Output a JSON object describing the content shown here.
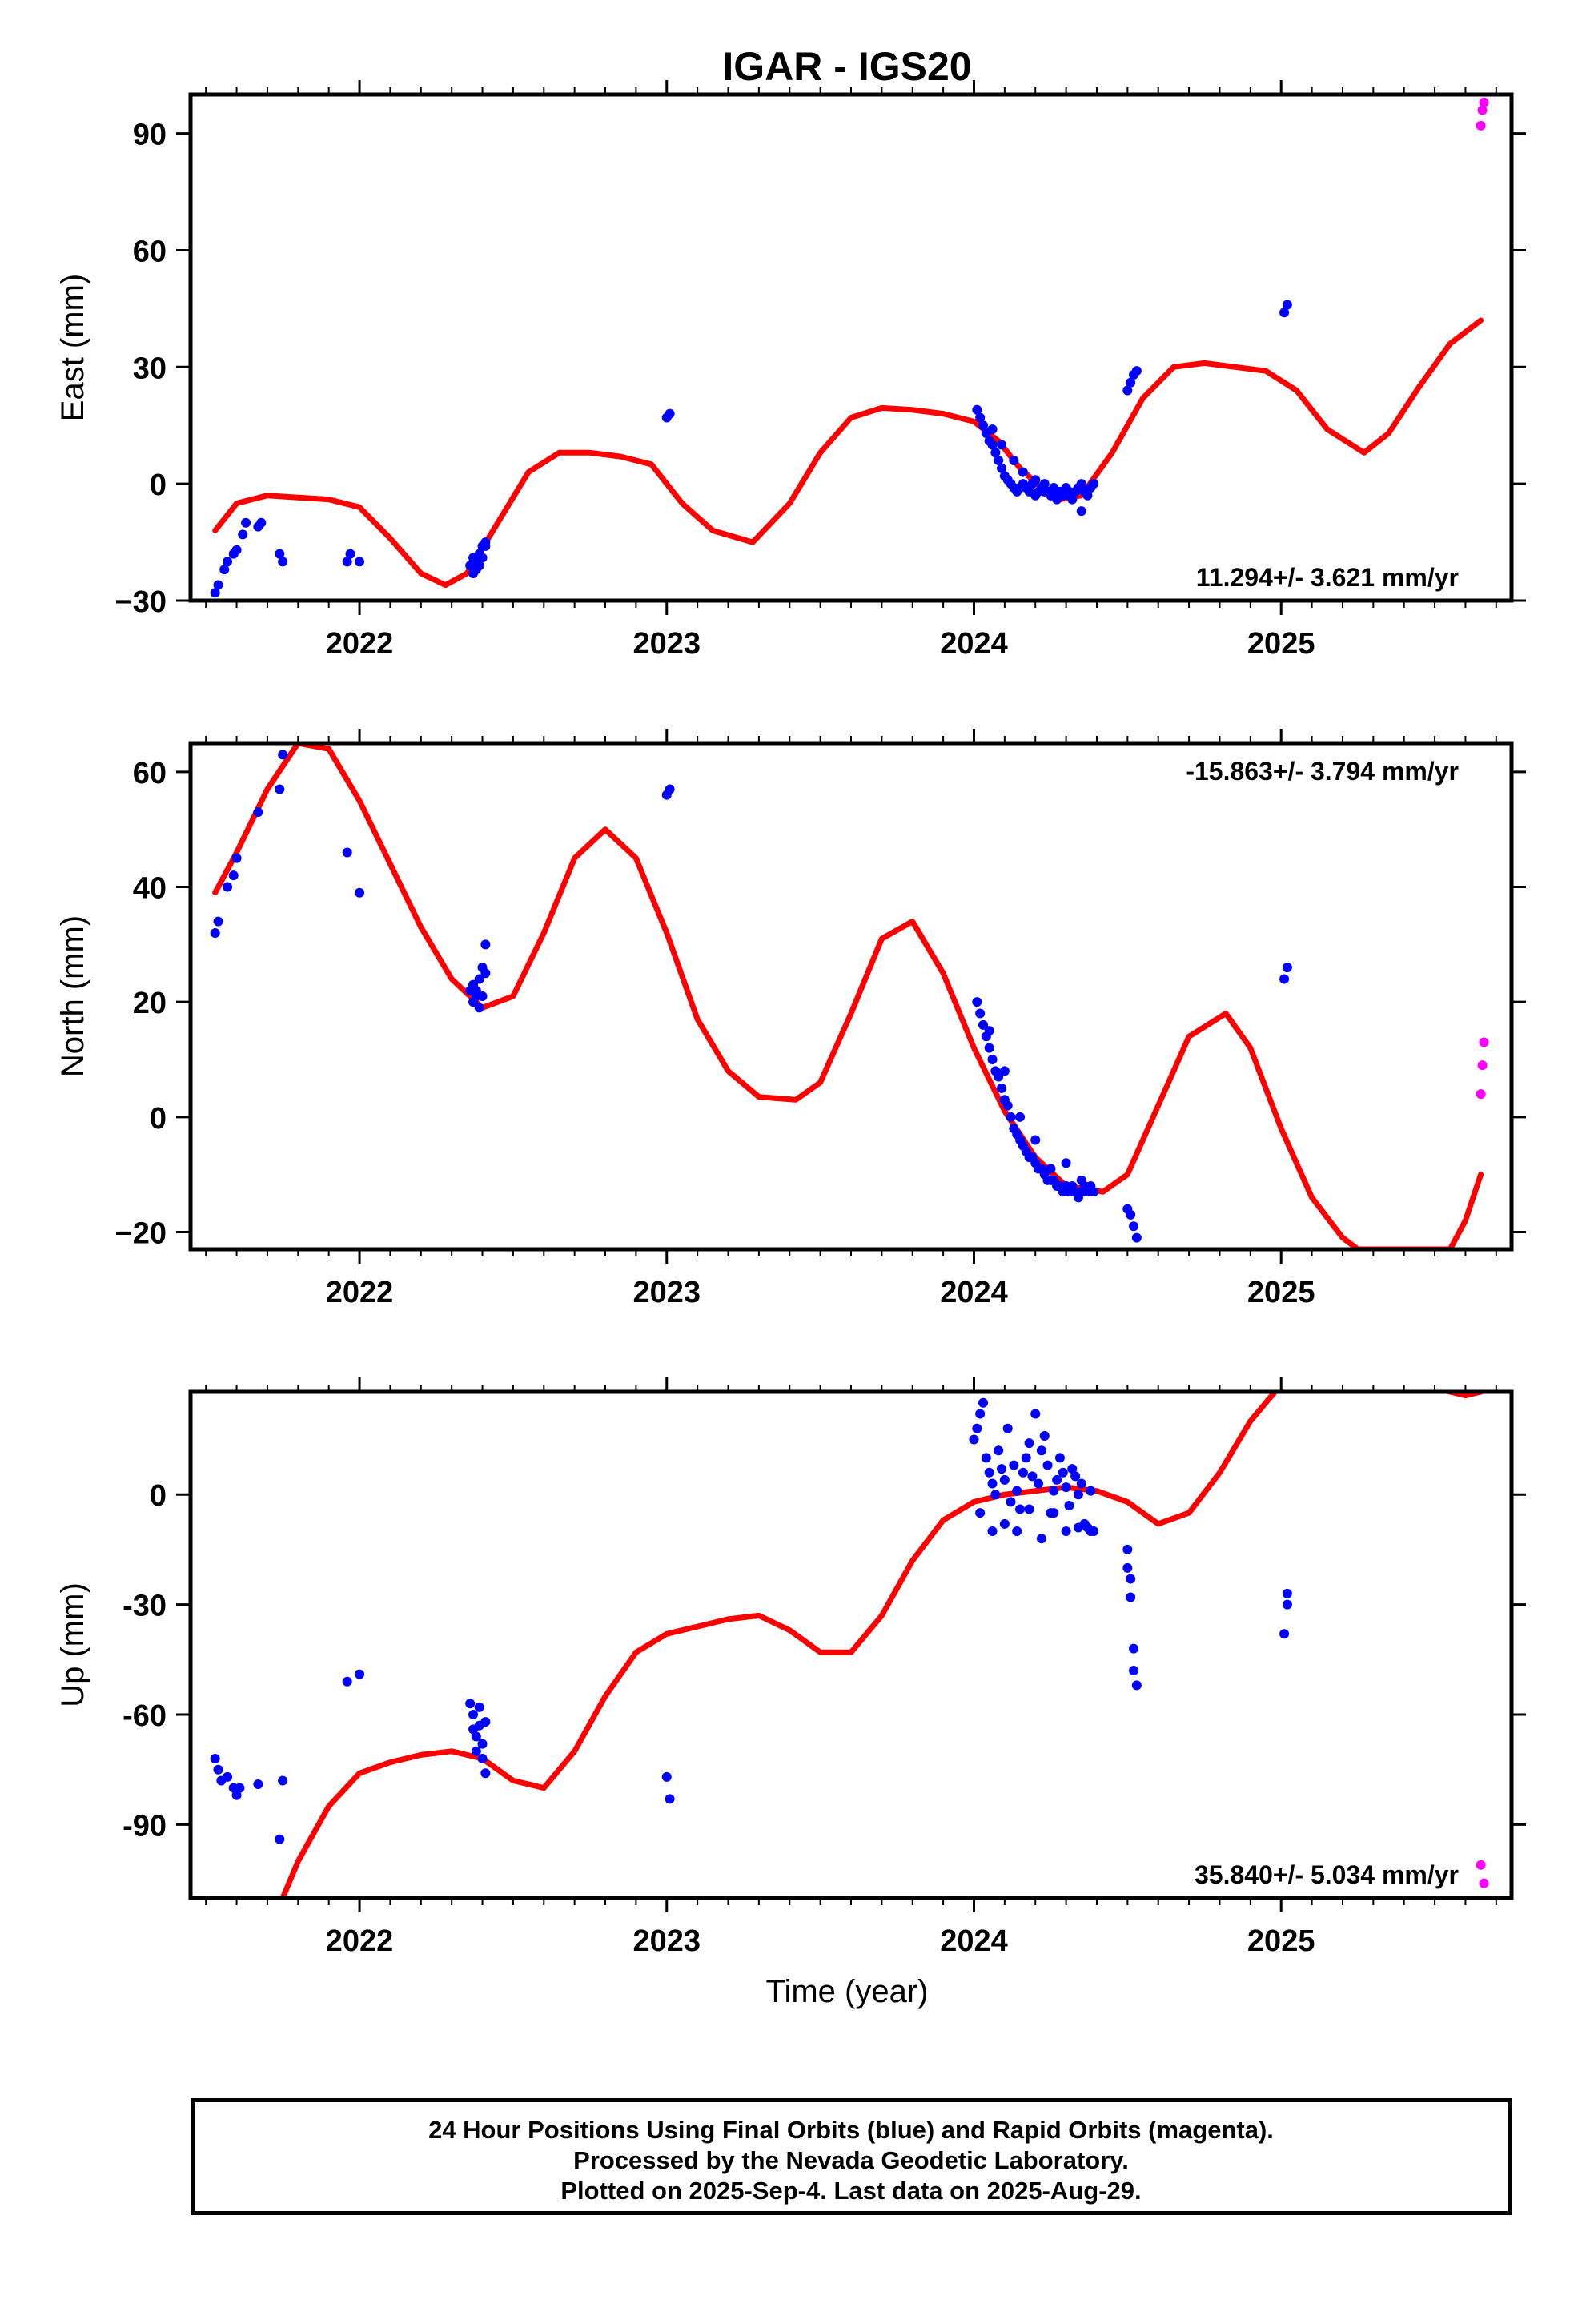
{
  "title": "IGAR - IGS20",
  "x_axis_label": "Time (year)",
  "colors": {
    "final": "#0000ff",
    "rapid": "#ff00ff",
    "model": "#ff0000"
  },
  "footer": {
    "line1": "24 Hour Positions Using Final Orbits (blue) and Rapid Orbits (magenta).",
    "line2": "Processed by the Nevada Geodetic Laboratory.",
    "line3": "Plotted on 2025-Sep-4. Last data on 2025-Aug-29."
  },
  "chart_data": [
    {
      "type": "scatter",
      "ylabel": "East (mm)",
      "rate_label": "11.294+/- 3.621 mm/yr",
      "rate_position": "bottom-right",
      "xlim": [
        2021.45,
        2025.75
      ],
      "ylim": [
        -30,
        100
      ],
      "x_ticks": [
        2022,
        2023,
        2024,
        2025
      ],
      "y_ticks": [
        -30,
        0,
        30,
        60,
        90
      ],
      "y_tick_labels": [
        "−30",
        "0",
        "30",
        "60",
        "90"
      ],
      "final_orbits": {
        "x": [
          2021.53,
          2021.54,
          2021.56,
          2021.57,
          2021.59,
          2021.6,
          2021.62,
          2021.63,
          2021.67,
          2021.68,
          2021.74,
          2021.75,
          2021.96,
          2021.97,
          2022.0,
          2022.36,
          2022.37,
          2022.37,
          2022.38,
          2022.38,
          2022.39,
          2022.39,
          2022.4,
          2022.4,
          2022.41,
          2022.41,
          2023.0,
          2023.01,
          2024.01,
          2024.02,
          2024.03,
          2024.04,
          2024.05,
          2024.06,
          2024.07,
          2024.08,
          2024.09,
          2024.1,
          2024.11,
          2024.12,
          2024.13,
          2024.14,
          2024.15,
          2024.16,
          2024.17,
          2024.18,
          2024.19,
          2024.2,
          2024.21,
          2024.22,
          2024.23,
          2024.24,
          2024.25,
          2024.26,
          2024.27,
          2024.28,
          2024.29,
          2024.3,
          2024.31,
          2024.32,
          2024.33,
          2024.34,
          2024.35,
          2024.36,
          2024.37,
          2024.38,
          2024.39,
          2024.06,
          2024.09,
          2024.13,
          2024.16,
          2024.2,
          2024.23,
          2024.27,
          2024.31,
          2024.35,
          2024.5,
          2024.51,
          2024.52,
          2024.53,
          2025.01,
          2025.02
        ],
        "y": [
          -28,
          -26,
          -22,
          -20,
          -18,
          -17,
          -13,
          -10,
          -11,
          -10,
          -18,
          -20,
          -20,
          -18,
          -20,
          -21,
          -23,
          -19,
          -22,
          -20,
          -18,
          -21,
          -16,
          -19,
          -15,
          -16,
          17,
          18,
          19,
          17,
          15,
          13,
          11,
          10,
          8,
          6,
          4,
          2,
          1,
          0,
          -1,
          -2,
          -1,
          0,
          -1,
          -2,
          0,
          -3,
          -2,
          -1,
          0,
          -2,
          -3,
          -1,
          -2,
          -2,
          -3,
          -1,
          -2,
          -4,
          -2,
          -1,
          0,
          -2,
          -3,
          -1,
          0,
          14,
          10,
          6,
          3,
          1,
          -2,
          -4,
          -3,
          -7,
          24,
          26,
          28,
          29,
          44,
          46
        ]
      },
      "rapid_orbits": {
        "x": [
          2025.65,
          2025.655,
          2025.66
        ],
        "y": [
          92,
          96,
          98
        ]
      },
      "model": {
        "x": [
          2021.53,
          2021.6,
          2021.7,
          2021.8,
          2021.9,
          2022.0,
          2022.1,
          2022.2,
          2022.28,
          2022.35,
          2022.45,
          2022.55,
          2022.65,
          2022.75,
          2022.85,
          2022.95,
          2023.05,
          2023.15,
          2023.28,
          2023.4,
          2023.5,
          2023.6,
          2023.7,
          2023.8,
          2023.9,
          2024.0,
          2024.08,
          2024.15,
          2024.22,
          2024.28,
          2024.35,
          2024.45,
          2024.55,
          2024.65,
          2024.75,
          2024.85,
          2024.95,
          2025.05,
          2025.15,
          2025.27,
          2025.35,
          2025.45,
          2025.55,
          2025.65
        ],
        "y": [
          -12,
          -5,
          -3,
          -3.5,
          -4,
          -6,
          -14,
          -23,
          -26,
          -23,
          -10,
          3,
          8,
          8,
          7,
          5,
          -5,
          -12,
          -15,
          -5,
          8,
          17,
          19.5,
          19,
          18,
          16,
          11,
          4,
          -1,
          -4,
          -3,
          8,
          22,
          30,
          31,
          30,
          29,
          24,
          14,
          8,
          13,
          25,
          36,
          42
        ]
      }
    },
    {
      "type": "scatter",
      "ylabel": "North (mm)",
      "rate_label": "-15.863+/- 3.794 mm/yr",
      "rate_position": "top-right",
      "xlim": [
        2021.45,
        2025.75
      ],
      "ylim": [
        -23,
        65
      ],
      "x_ticks": [
        2022,
        2023,
        2024,
        2025
      ],
      "y_ticks": [
        -20,
        0,
        20,
        40,
        60
      ],
      "y_tick_labels": [
        "−20",
        "0",
        "20",
        "40",
        "60"
      ],
      "final_orbits": {
        "x": [
          2021.53,
          2021.54,
          2021.57,
          2021.59,
          2021.6,
          2021.67,
          2021.74,
          2021.75,
          2021.96,
          2022.0,
          2022.36,
          2022.37,
          2022.37,
          2022.38,
          2022.38,
          2022.39,
          2022.39,
          2022.4,
          2022.4,
          2022.41,
          2022.41,
          2023.0,
          2023.01,
          2024.01,
          2024.02,
          2024.03,
          2024.04,
          2024.05,
          2024.06,
          2024.07,
          2024.08,
          2024.09,
          2024.1,
          2024.11,
          2024.12,
          2024.13,
          2024.14,
          2024.15,
          2024.16,
          2024.17,
          2024.18,
          2024.19,
          2024.2,
          2024.21,
          2024.22,
          2024.23,
          2024.24,
          2024.25,
          2024.26,
          2024.27,
          2024.28,
          2024.29,
          2024.3,
          2024.31,
          2024.32,
          2024.33,
          2024.34,
          2024.35,
          2024.36,
          2024.37,
          2024.38,
          2024.39,
          2024.05,
          2024.1,
          2024.15,
          2024.2,
          2024.25,
          2024.3,
          2024.35,
          2024.5,
          2024.51,
          2024.52,
          2024.53,
          2025.01,
          2025.02
        ],
        "y": [
          32,
          34,
          40,
          42,
          45,
          53,
          57,
          63,
          46,
          39,
          22,
          20,
          23,
          21,
          22,
          19,
          24,
          21,
          26,
          25,
          30,
          56,
          57,
          20,
          18,
          16,
          14,
          12,
          10,
          8,
          7,
          5,
          3,
          2,
          0,
          -2,
          -3,
          -4,
          -5,
          -6,
          -7,
          -7,
          -8,
          -9,
          -9,
          -10,
          -11,
          -11,
          -11,
          -12,
          -12,
          -13,
          -12,
          -13,
          -12,
          -13,
          -14,
          -13,
          -12,
          -13,
          -12,
          -13,
          15,
          8,
          0,
          -4,
          -9,
          -8,
          -11,
          -16,
          -17,
          -19,
          -21,
          24,
          26
        ]
      },
      "rapid_orbits": {
        "x": [
          2025.65,
          2025.655,
          2025.66
        ],
        "y": [
          4,
          9,
          13
        ]
      },
      "model": {
        "x": [
          2021.53,
          2021.6,
          2021.7,
          2021.8,
          2021.9,
          2022.0,
          2022.1,
          2022.2,
          2022.3,
          2022.4,
          2022.5,
          2022.6,
          2022.7,
          2022.8,
          2022.9,
          2023.0,
          2023.1,
          2023.2,
          2023.3,
          2023.42,
          2023.5,
          2023.6,
          2023.7,
          2023.8,
          2023.9,
          2024.0,
          2024.1,
          2024.2,
          2024.3,
          2024.42,
          2024.5,
          2024.6,
          2024.7,
          2024.82,
          2024.9,
          2025.0,
          2025.1,
          2025.2,
          2025.25,
          2025.55,
          2025.6,
          2025.65
        ],
        "y": [
          39,
          46,
          57,
          65,
          64,
          55,
          44,
          33,
          24,
          19,
          21,
          32,
          45,
          50,
          45,
          32,
          17,
          8,
          3.5,
          3,
          6,
          18,
          31,
          34,
          25,
          12,
          1,
          -7,
          -12,
          -13,
          -10,
          2,
          14,
          18,
          12,
          -2,
          -14,
          -21,
          -23,
          -23,
          -18,
          -10
        ]
      }
    },
    {
      "type": "scatter",
      "ylabel": "Up (mm)",
      "rate_label": "35.840+/- 5.034 mm/yr",
      "rate_position": "bottom-right",
      "xlim": [
        2021.45,
        2025.75
      ],
      "ylim": [
        -110,
        28
      ],
      "x_ticks": [
        2022,
        2023,
        2024,
        2025
      ],
      "y_ticks": [
        -90,
        -60,
        -30,
        0
      ],
      "y_tick_labels": [
        "-90",
        "-60",
        "-30",
        "0"
      ],
      "final_orbits": {
        "x": [
          2021.53,
          2021.54,
          2021.55,
          2021.57,
          2021.59,
          2021.6,
          2021.61,
          2021.67,
          2021.74,
          2021.75,
          2021.96,
          2022.0,
          2022.36,
          2022.37,
          2022.37,
          2022.38,
          2022.38,
          2022.39,
          2022.39,
          2022.4,
          2022.4,
          2022.41,
          2022.41,
          2023.0,
          2023.01,
          2024.0,
          2024.01,
          2024.02,
          2024.03,
          2024.04,
          2024.05,
          2024.06,
          2024.07,
          2024.08,
          2024.09,
          2024.1,
          2024.11,
          2024.12,
          2024.13,
          2024.14,
          2024.15,
          2024.16,
          2024.17,
          2024.18,
          2024.19,
          2024.2,
          2024.21,
          2024.22,
          2024.23,
          2024.24,
          2024.25,
          2024.26,
          2024.27,
          2024.28,
          2024.29,
          2024.3,
          2024.31,
          2024.32,
          2024.33,
          2024.34,
          2024.35,
          2024.36,
          2024.37,
          2024.38,
          2024.39,
          2024.02,
          2024.06,
          2024.1,
          2024.14,
          2024.18,
          2024.22,
          2024.26,
          2024.3,
          2024.34,
          2024.38,
          2024.5,
          2024.5,
          2024.51,
          2024.51,
          2024.52,
          2024.52,
          2024.53,
          2025.01,
          2025.02,
          2025.02
        ],
        "y": [
          -72,
          -75,
          -78,
          -77,
          -80,
          -82,
          -80,
          -79,
          -94,
          -78,
          -51,
          -49,
          -57,
          -60,
          -64,
          -70,
          -66,
          -63,
          -58,
          -68,
          -72,
          -76,
          -62,
          -77,
          -83,
          15,
          18,
          22,
          25,
          10,
          6,
          3,
          0,
          12,
          7,
          4,
          18,
          -2,
          8,
          1,
          -4,
          6,
          10,
          14,
          5,
          22,
          3,
          12,
          16,
          8,
          -5,
          1,
          4,
          10,
          6,
          2,
          -3,
          7,
          5,
          0,
          3,
          -8,
          -9,
          1,
          -10,
          -5,
          -10,
          -8,
          -10,
          -4,
          -12,
          -5,
          -10,
          -9,
          -10,
          -15,
          -20,
          -23,
          -28,
          -42,
          -48,
          -52,
          -38,
          -27,
          -30
        ],
        "y_note": "sampled from plot"
      },
      "rapid_orbits": {
        "x": [
          2025.65,
          2025.66
        ],
        "y": [
          -101,
          -106
        ]
      },
      "model": {
        "x": [
          2021.75,
          2021.8,
          2021.9,
          2022.0,
          2022.1,
          2022.2,
          2022.3,
          2022.4,
          2022.5,
          2022.6,
          2022.7,
          2022.8,
          2022.9,
          2023.0,
          2023.1,
          2023.2,
          2023.3,
          2023.4,
          2023.5,
          2023.6,
          2023.7,
          2023.8,
          2023.9,
          2024.0,
          2024.1,
          2024.2,
          2024.3,
          2024.4,
          2024.5,
          2024.6,
          2024.7,
          2024.8,
          2024.9,
          2025.0,
          2025.1,
          2025.55,
          2025.6,
          2025.65
        ],
        "y": [
          -110,
          -100,
          -85,
          -76,
          -73,
          -71,
          -70,
          -72,
          -78,
          -80,
          -70,
          -55,
          -43,
          -38,
          -36,
          -34,
          -33,
          -37,
          -43,
          -43,
          -33,
          -18,
          -7,
          -2,
          0,
          1,
          2,
          1,
          -2,
          -8,
          -5,
          6,
          20,
          30,
          38,
          28,
          27,
          28
        ]
      }
    }
  ]
}
